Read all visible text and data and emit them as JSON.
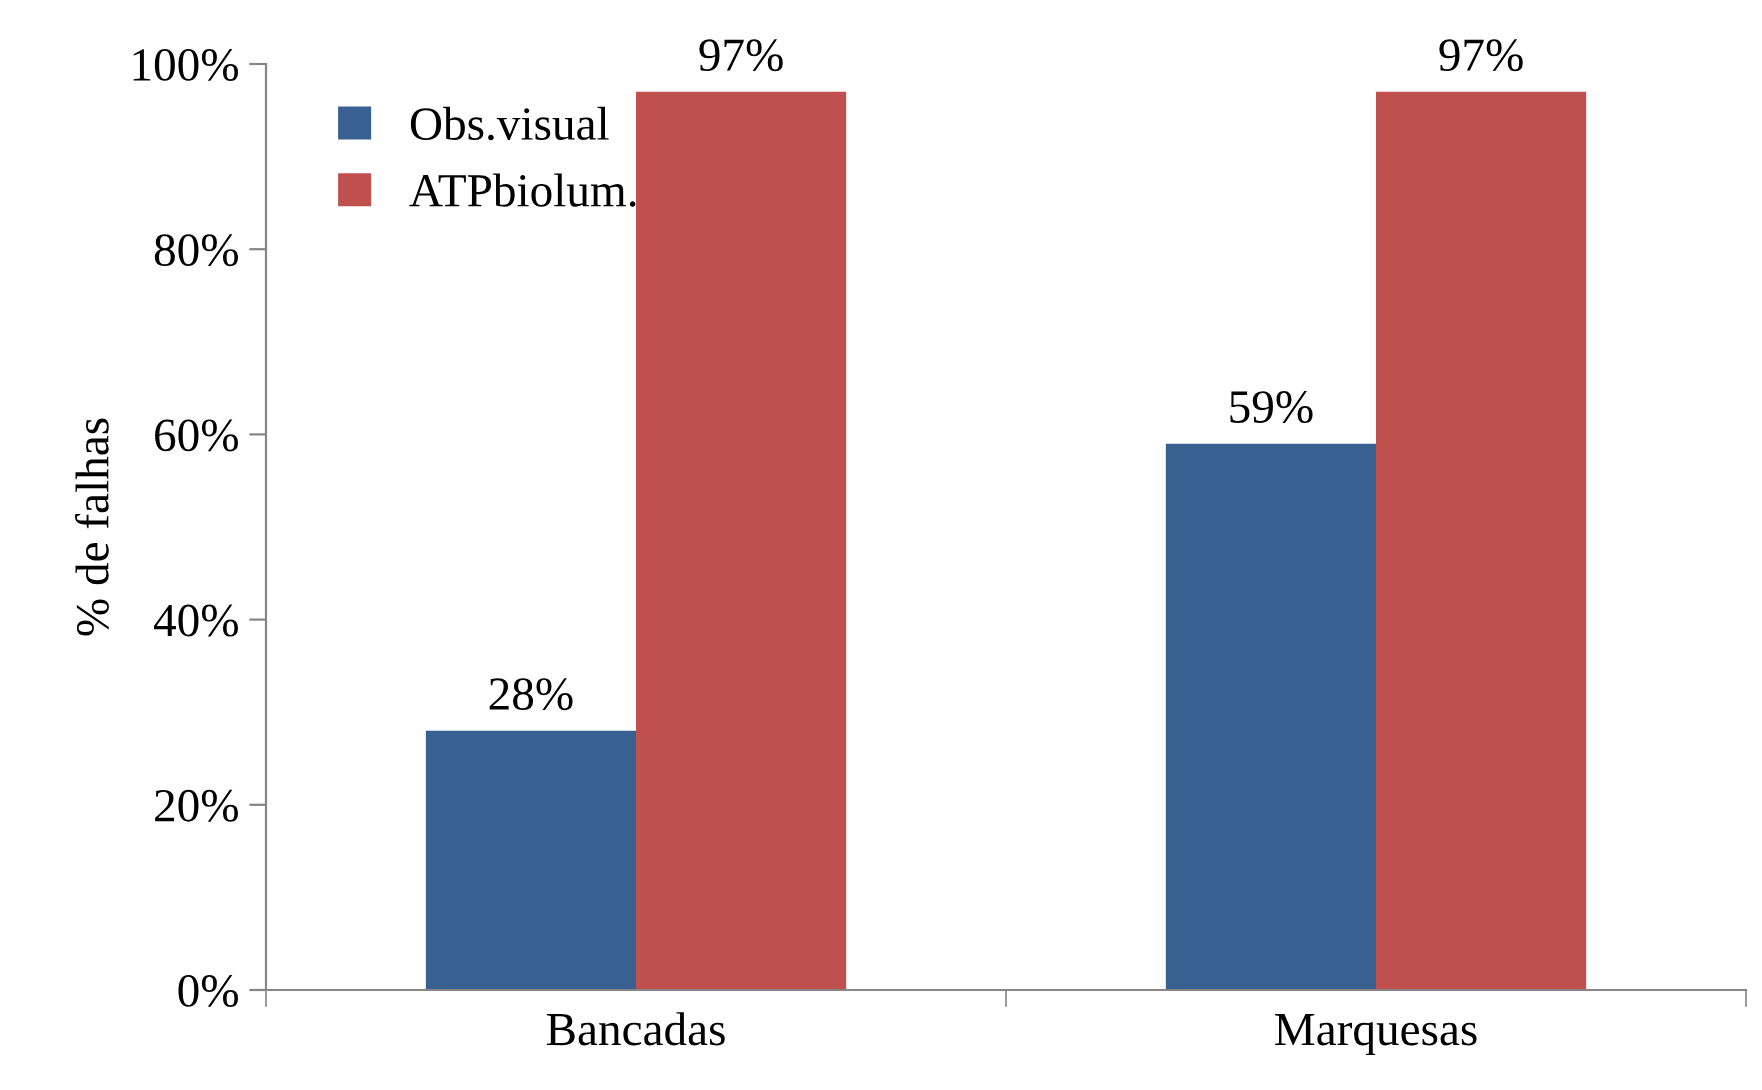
{
  "chart_data": {
    "type": "bar",
    "ylabel": "% de falhas",
    "categories": [
      "Bancadas",
      "Marquesas"
    ],
    "series": [
      {
        "name": "Obs.visual",
        "color": "#386192",
        "values": [
          28,
          59
        ],
        "value_labels": [
          "28%",
          "59%"
        ]
      },
      {
        "name": "ATPbiolum.",
        "color": "#c0504d",
        "values": [
          97,
          97
        ],
        "value_labels": [
          "97%",
          "97%"
        ]
      }
    ],
    "ylim": [
      0,
      100
    ],
    "yticks": [
      {
        "value": 0,
        "label": "0%"
      },
      {
        "value": 20,
        "label": "20%"
      },
      {
        "value": 40,
        "label": "40%"
      },
      {
        "value": 60,
        "label": "60%"
      },
      {
        "value": 80,
        "label": "80%"
      },
      {
        "value": 100,
        "label": "100%"
      }
    ],
    "grid": false,
    "legend": "top left"
  }
}
